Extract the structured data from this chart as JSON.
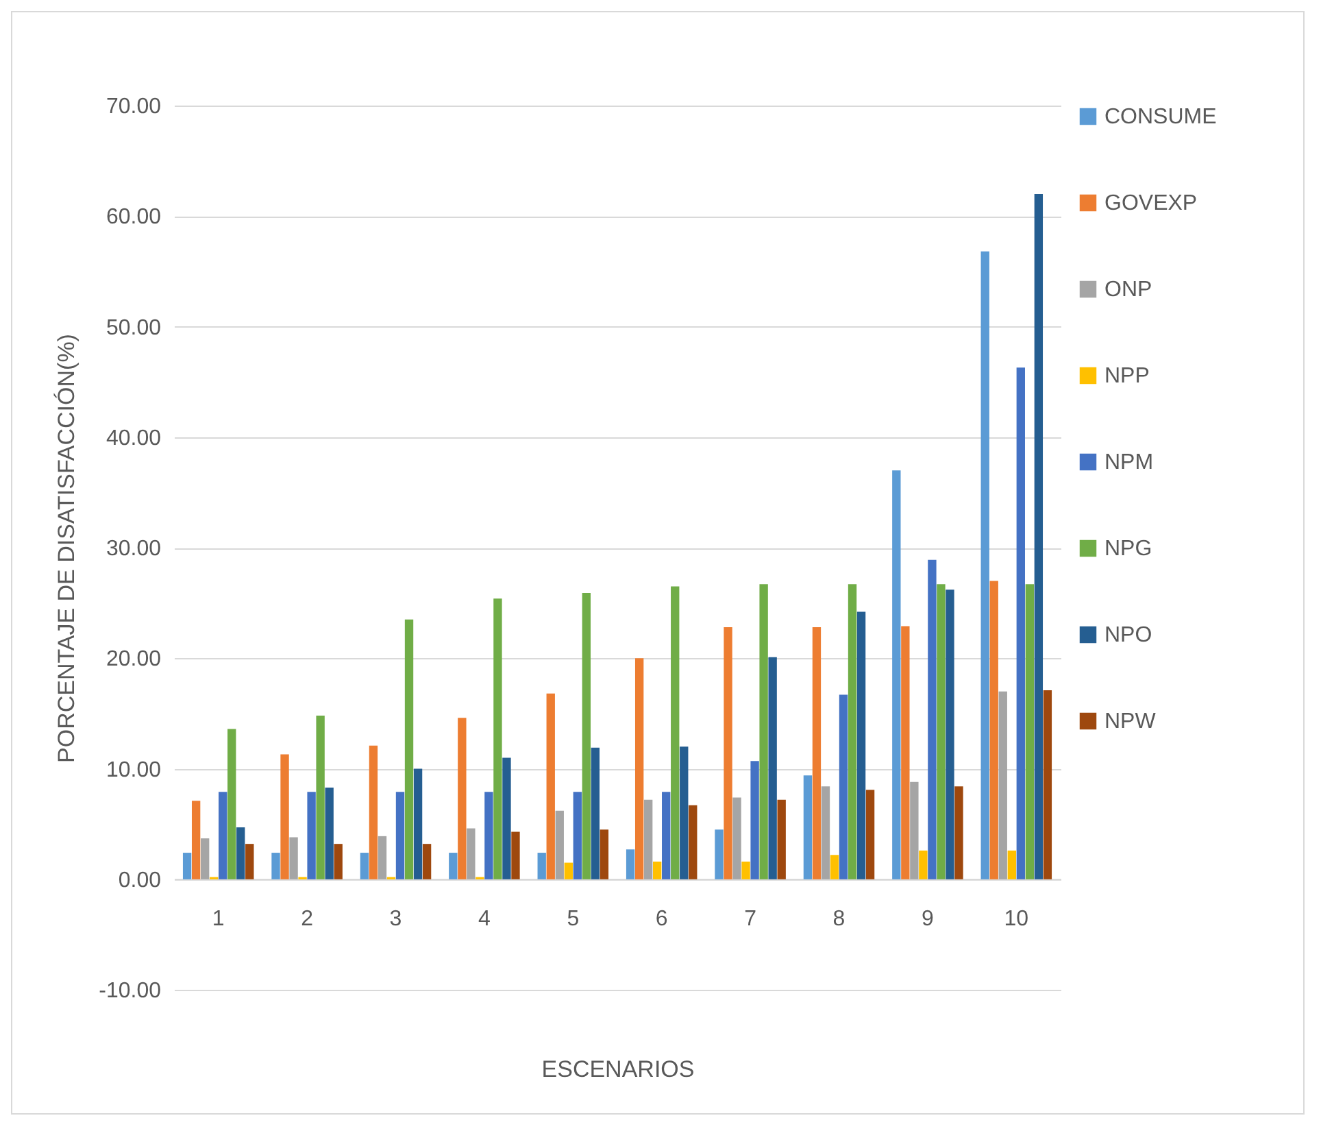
{
  "chart_data": {
    "type": "bar",
    "xlabel": "ESCENARIOS",
    "ylabel": "PORCENTAJE DE DISATISFACCIÓN(%)",
    "categories": [
      "1",
      "2",
      "3",
      "4",
      "5",
      "6",
      "7",
      "8",
      "9",
      "10"
    ],
    "series": [
      {
        "name": "CONSUME",
        "color": "#5b9bd5",
        "values": [
          2.4,
          2.4,
          2.4,
          2.4,
          2.4,
          2.7,
          4.5,
          9.4,
          37.0,
          56.8
        ]
      },
      {
        "name": "GOVEXP",
        "color": "#ed7d31",
        "values": [
          7.1,
          11.3,
          12.1,
          14.6,
          16.8,
          20.0,
          22.8,
          22.8,
          22.9,
          27.0
        ]
      },
      {
        "name": "ONP",
        "color": "#a5a5a5",
        "values": [
          3.7,
          3.8,
          3.9,
          4.6,
          6.2,
          7.2,
          7.4,
          8.4,
          8.8,
          17.0
        ]
      },
      {
        "name": "NPP",
        "color": "#ffc000",
        "values": [
          0.2,
          0.2,
          0.2,
          0.2,
          1.5,
          1.6,
          1.6,
          2.2,
          2.6,
          2.6
        ]
      },
      {
        "name": "NPM",
        "color": "#4472c4",
        "values": [
          7.9,
          7.9,
          7.9,
          7.9,
          7.9,
          7.9,
          10.7,
          16.7,
          28.9,
          46.3
        ]
      },
      {
        "name": "NPG",
        "color": "#70ad47",
        "values": [
          13.6,
          14.8,
          23.5,
          25.4,
          25.9,
          26.5,
          26.7,
          26.7,
          26.7,
          26.7
        ]
      },
      {
        "name": "NPO",
        "color": "#255e91",
        "values": [
          4.7,
          8.3,
          10.0,
          11.0,
          11.9,
          12.0,
          20.1,
          24.2,
          26.2,
          62.0
        ]
      },
      {
        "name": "NPW",
        "color": "#9e480e",
        "values": [
          3.2,
          3.2,
          3.2,
          4.3,
          4.5,
          6.7,
          7.2,
          8.1,
          8.4,
          17.1
        ]
      }
    ],
    "ylim": [
      -10,
      70
    ],
    "yticks": [
      {
        "value": -10,
        "label": "-10.00"
      },
      {
        "value": 0,
        "label": "0.00"
      },
      {
        "value": 10,
        "label": "10.00"
      },
      {
        "value": 20,
        "label": "20.00"
      },
      {
        "value": 30,
        "label": "30.00"
      },
      {
        "value": 40,
        "label": "40.00"
      },
      {
        "value": 50,
        "label": "50.00"
      },
      {
        "value": 60,
        "label": "60.00"
      },
      {
        "value": 70,
        "label": "70.00"
      }
    ],
    "grid": true,
    "legend": "right"
  }
}
